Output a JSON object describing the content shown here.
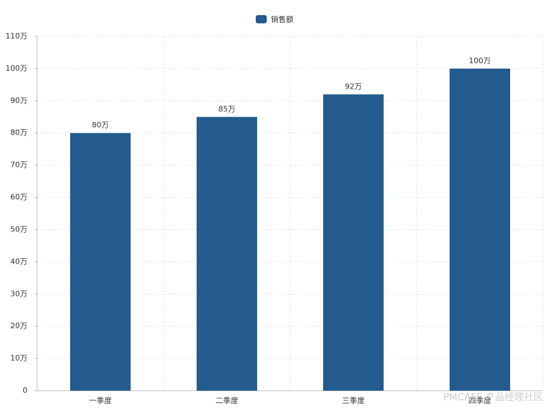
{
  "chart_data": {
    "type": "bar",
    "legend": "销售额",
    "categories": [
      "一季度",
      "二季度",
      "三季度",
      "四季度"
    ],
    "series": [
      {
        "name": "销售额",
        "color": "#245b8e",
        "values": [
          80,
          85,
          92,
          100
        ],
        "value_labels": [
          "80万",
          "85万",
          "92万",
          "100万"
        ]
      }
    ],
    "ylim": [
      0,
      110
    ],
    "yticks": [
      0,
      {
        "value": 10,
        "label": "10万"
      },
      {
        "value": 20,
        "label": "20万"
      },
      {
        "value": 30,
        "label": "30万"
      },
      {
        "value": 40,
        "label": "40万"
      },
      {
        "value": 50,
        "label": "50万"
      },
      {
        "value": 60,
        "label": "60万"
      },
      {
        "value": 70,
        "label": "70万"
      },
      {
        "value": 80,
        "label": "80万"
      },
      {
        "value": 90,
        "label": "90万"
      },
      {
        "value": 100,
        "label": "100万"
      },
      {
        "value": 110,
        "label": "110万"
      }
    ],
    "grid": true,
    "watermark": "PMCAFE 产品经理社区"
  }
}
